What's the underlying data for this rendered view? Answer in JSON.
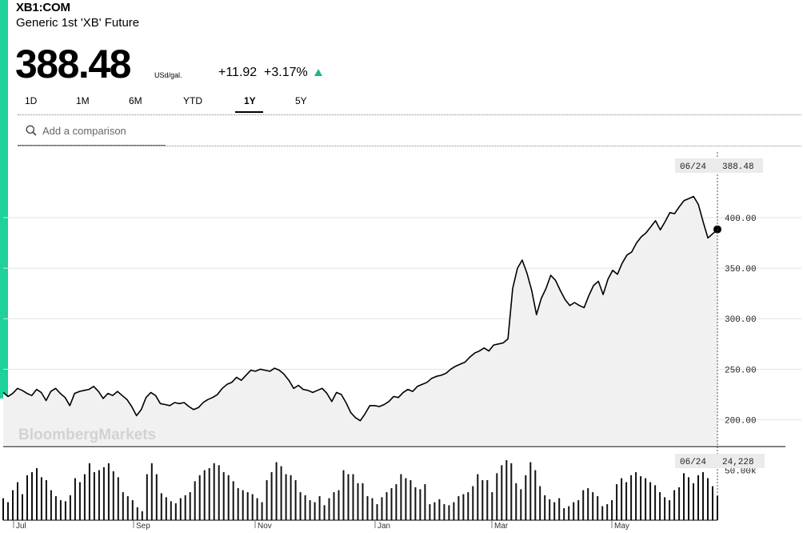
{
  "header": {
    "ticker": "XB1:COM",
    "name": "Generic 1st 'XB' Future",
    "price": "388.48",
    "unit": "USd/gal.",
    "change": "+11.92",
    "change_pct": "+3.17%",
    "change_direction": "up-arrow-icon",
    "accent_color": "#1fd19a"
  },
  "tabs": [
    {
      "label": "1D"
    },
    {
      "label": "1M"
    },
    {
      "label": "6M"
    },
    {
      "label": "YTD"
    },
    {
      "label": "1Y",
      "active": true
    },
    {
      "label": "5Y"
    }
  ],
  "search": {
    "placeholder": "Add a comparison",
    "icon": "search-icon"
  },
  "watermark": "BloombergMarkets",
  "chart_data": {
    "type": "area",
    "price": {
      "last_date": "06/24",
      "last_value": "388.48",
      "yticks": [
        "400.00",
        "350.00",
        "300.00",
        "250.00",
        "200.00"
      ],
      "ylim": [
        175,
        465
      ],
      "values": [
        227,
        223,
        226,
        231,
        229,
        226,
        224,
        230,
        227,
        219,
        228,
        231,
        226,
        222,
        214,
        226,
        228,
        229,
        230,
        233,
        228,
        221,
        226,
        224,
        228,
        224,
        220,
        213,
        204,
        210,
        222,
        227,
        224,
        216,
        215,
        214,
        217,
        216,
        217,
        213,
        210,
        212,
        217,
        220,
        222,
        225,
        231,
        235,
        237,
        242,
        239,
        244,
        249,
        248,
        250,
        249,
        248,
        251,
        249,
        245,
        239,
        231,
        234,
        230,
        229,
        227,
        229,
        231,
        226,
        218,
        227,
        225,
        217,
        207,
        202,
        199,
        206,
        214,
        214,
        213,
        215,
        218,
        223,
        222,
        227,
        230,
        228,
        233,
        235,
        237,
        241,
        243,
        244,
        246,
        250,
        253,
        255,
        257,
        262,
        266,
        268,
        271,
        268,
        274,
        275,
        276,
        280,
        330,
        350,
        358,
        345,
        328,
        304,
        320,
        330,
        343,
        338,
        328,
        319,
        313,
        316,
        313,
        311,
        323,
        333,
        337,
        324,
        339,
        348,
        344,
        355,
        363,
        366,
        375,
        381,
        385,
        391,
        397,
        388,
        396,
        405,
        404,
        411,
        417,
        419,
        421,
        413,
        396,
        380,
        384,
        388.48
      ]
    },
    "volume": {
      "last_date": "06/24",
      "last_value": "24,228",
      "ytick": "50.00k",
      "ymax": 68000,
      "values": [
        22000,
        18000,
        30000,
        38000,
        26000,
        45000,
        48000,
        52000,
        43000,
        40000,
        30000,
        24000,
        20000,
        19000,
        25000,
        42000,
        38000,
        46000,
        57000,
        48000,
        50000,
        53000,
        57000,
        49000,
        43000,
        28000,
        24000,
        20000,
        13000,
        9000,
        46000,
        57000,
        46000,
        27000,
        23000,
        19000,
        17000,
        22000,
        25000,
        28000,
        39000,
        45000,
        50000,
        52000,
        57000,
        55000,
        48000,
        45000,
        39000,
        32000,
        30000,
        28000,
        26000,
        22000,
        18000,
        40000,
        48000,
        58000,
        54000,
        46000,
        45000,
        40000,
        28000,
        25000,
        20000,
        18000,
        24000,
        15000,
        22000,
        28000,
        30000,
        50000,
        46000,
        46000,
        37000,
        37000,
        24000,
        22000,
        16000,
        23000,
        28000,
        32000,
        36000,
        46000,
        42000,
        40000,
        33000,
        31000,
        36000,
        16000,
        18000,
        21000,
        16000,
        15000,
        18000,
        24000,
        26000,
        28000,
        34000,
        46000,
        40000,
        40000,
        28000,
        47000,
        55000,
        60000,
        57000,
        37000,
        31000,
        45000,
        58000,
        50000,
        34000,
        25000,
        21000,
        18000,
        22000,
        12000,
        14000,
        18000,
        20000,
        30000,
        32000,
        28000,
        24000,
        14000,
        16000,
        20000,
        36000,
        42000,
        38000,
        45000,
        48000,
        44000,
        42000,
        38000,
        35000,
        28000,
        23000,
        20000,
        30000,
        33000,
        47000,
        43000,
        37000,
        45000,
        48000,
        42000,
        34000,
        24228
      ]
    },
    "x_labels": [
      "Jul",
      "Sep",
      "Nov",
      "Jan",
      "Mar",
      "May"
    ],
    "grid": true
  }
}
